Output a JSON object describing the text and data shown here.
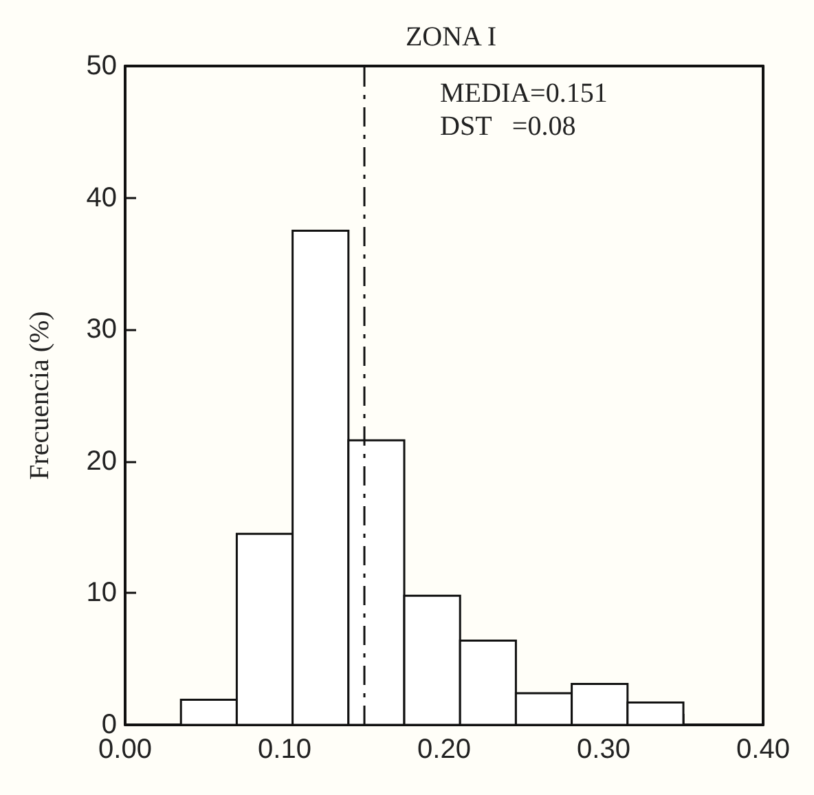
{
  "chart_data": {
    "type": "histogram",
    "title": "ZONA I",
    "ylabel": "Frecuencia (%)",
    "bins": [
      0.035,
      0.07,
      0.105,
      0.14,
      0.175,
      0.21,
      0.245,
      0.28,
      0.315,
      0.35
    ],
    "values": [
      1.9,
      14.5,
      37.5,
      21.6,
      9.8,
      6.4,
      2.4,
      3.1,
      1.7
    ],
    "color": "#ffffff",
    "xlim": [
      0,
      0.4
    ],
    "xticks": [
      {
        "value": 0,
        "label": "0.00"
      },
      {
        "value": 0.05,
        "label": null
      },
      {
        "value": 0.1,
        "label": "0.10"
      },
      {
        "value": 0.15,
        "label": null
      },
      {
        "value": 0.2,
        "label": "0.20"
      },
      {
        "value": 0.25,
        "label": null
      },
      {
        "value": 0.3,
        "label": "0.30"
      },
      {
        "value": 0.35,
        "label": null
      },
      {
        "value": 0.4,
        "label": "0.40"
      }
    ],
    "ylim": [
      0,
      50
    ],
    "yticks": [
      0,
      10,
      20,
      30,
      40,
      50
    ],
    "ref_lines": [
      {
        "axis": "x",
        "value": 0.151,
        "line_style": "dashed"
      }
    ],
    "annotations": [
      "MEDIA=0.151",
      "DST   =0.08"
    ],
    "grid": false
  }
}
